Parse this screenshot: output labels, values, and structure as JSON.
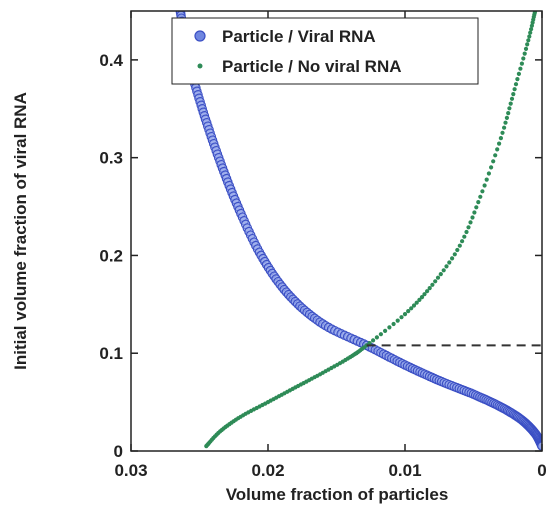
{
  "chart_data": {
    "type": "scatter",
    "xlabel": "Volume fraction of particles",
    "ylabel": "Initial volume fraction of viral RNA",
    "xlim": [
      0.03,
      0
    ],
    "ylim": [
      0,
      0.45
    ],
    "x_reversed": true,
    "grid": false,
    "legend_position": "top-right",
    "x_ticks": [
      0.03,
      0.02,
      0.01,
      0
    ],
    "x_tick_labels": [
      "0.03",
      "0.02",
      "0.01",
      "0"
    ],
    "y_ticks": [
      0,
      0.1,
      0.2,
      0.3,
      0.4
    ],
    "y_tick_labels": [
      "0",
      "0.1",
      "0.2",
      "0.3",
      "0.4"
    ],
    "series": [
      {
        "name": "Particle / Viral RNA",
        "color": "#3b4fc4",
        "marker": "circle",
        "points": [
          [
            0.0264,
            0.45
          ],
          [
            0.0258,
            0.4
          ],
          [
            0.0248,
            0.35
          ],
          [
            0.0236,
            0.3
          ],
          [
            0.0222,
            0.25
          ],
          [
            0.0205,
            0.2
          ],
          [
            0.0185,
            0.16
          ],
          [
            0.016,
            0.13
          ],
          [
            0.0128,
            0.108
          ],
          [
            0.01,
            0.088
          ],
          [
            0.0075,
            0.072
          ],
          [
            0.005,
            0.058
          ],
          [
            0.003,
            0.045
          ],
          [
            0.0015,
            0.032
          ],
          [
            0.0005,
            0.018
          ],
          [
            0.0,
            0.005
          ]
        ]
      },
      {
        "name": "Particle / No viral RNA",
        "color": "#2e8b57",
        "marker": "dot",
        "points": [
          [
            0.0245,
            0.005
          ],
          [
            0.0235,
            0.02
          ],
          [
            0.022,
            0.035
          ],
          [
            0.02,
            0.05
          ],
          [
            0.018,
            0.065
          ],
          [
            0.016,
            0.08
          ],
          [
            0.014,
            0.096
          ],
          [
            0.0128,
            0.108
          ],
          [
            0.01,
            0.14
          ],
          [
            0.008,
            0.17
          ],
          [
            0.006,
            0.21
          ],
          [
            0.0045,
            0.26
          ],
          [
            0.003,
            0.32
          ],
          [
            0.002,
            0.37
          ],
          [
            0.001,
            0.42
          ],
          [
            0.0005,
            0.45
          ]
        ]
      }
    ],
    "reference_line": {
      "style": "dashed",
      "color": "#333333",
      "y": 0.108,
      "x_start": 0.0128,
      "x_end": 0.0
    }
  }
}
